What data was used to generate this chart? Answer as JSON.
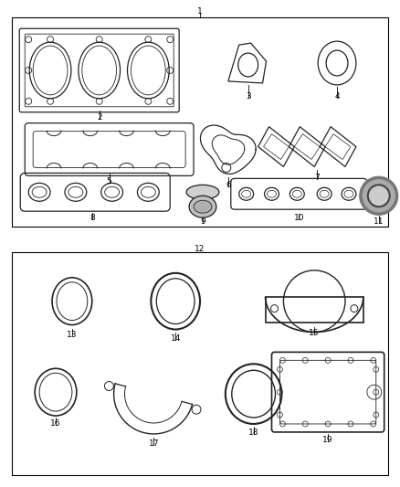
{
  "bg_color": "#ffffff",
  "line_color": "#000000",
  "pc": "#222222",
  "fig_width": 4.38,
  "fig_height": 5.33,
  "labels": [
    "1",
    "2",
    "3",
    "4",
    "5",
    "6",
    "7",
    "8",
    "9",
    "10",
    "11",
    "12",
    "13",
    "14",
    "15",
    "16",
    "17",
    "18",
    "19"
  ]
}
